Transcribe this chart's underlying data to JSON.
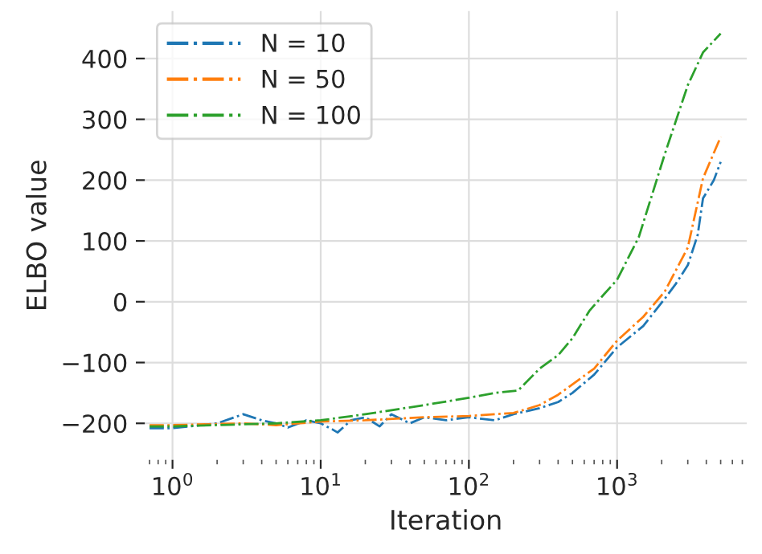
{
  "chart_data": {
    "type": "line",
    "xlabel": "Iteration",
    "ylabel": "ELBO value",
    "log": "x",
    "xlim": [
      0.65,
      7500
    ],
    "ylim": [
      -260,
      478
    ],
    "xticks": [
      {
        "value": 1,
        "label": "10$^{0}$"
      },
      {
        "value": 10,
        "label": "10$^{1}$"
      },
      {
        "value": 100,
        "label": "10$^{2}$"
      },
      {
        "value": 1000,
        "label": "10$^{3}$"
      }
    ],
    "yticks": [
      -200,
      -100,
      0,
      100,
      200,
      300,
      400
    ],
    "grid": true,
    "legend": "top left",
    "marker": "none",
    "line_style": "dashed",
    "series": [
      {
        "name": "N = 10",
        "color": "#1f77b4",
        "x": [
          0.7,
          1,
          2,
          3,
          4,
          5,
          6,
          8,
          10,
          12,
          13,
          16,
          20,
          25,
          30,
          40,
          50,
          70,
          100,
          150,
          200,
          300,
          400,
          500,
          700,
          1000,
          1500,
          2100,
          2500,
          3000,
          3500,
          3800,
          4500,
          5000
        ],
        "values": [
          -208,
          -208,
          -200,
          -185,
          -195,
          -200,
          -207,
          -195,
          -200,
          -210,
          -215,
          -195,
          -190,
          -205,
          -185,
          -200,
          -190,
          -195,
          -190,
          -195,
          -185,
          -175,
          -165,
          -150,
          -120,
          -75,
          -40,
          5,
          30,
          60,
          110,
          170,
          200,
          230
        ]
      },
      {
        "name": "N = 50",
        "color": "#ff7f0e",
        "x": [
          0.7,
          1,
          3,
          5,
          10,
          20,
          50,
          100,
          200,
          300,
          400,
          700,
          1000,
          1500,
          2100,
          3000,
          3800,
          5000
        ],
        "values": [
          -203,
          -203,
          -200,
          -203,
          -197,
          -195,
          -190,
          -188,
          -183,
          -170,
          -153,
          -110,
          -64,
          -25,
          17,
          89,
          203,
          271
        ]
      },
      {
        "name": "N = 100",
        "color": "#2ca02c",
        "x": [
          0.7,
          1,
          5,
          10,
          20,
          50,
          100,
          150,
          215,
          300,
          400,
          500,
          650,
          800,
          1000,
          1400,
          2100,
          3000,
          3800,
          5000
        ],
        "values": [
          -205,
          -205,
          -200,
          -195,
          -185,
          -170,
          -158,
          -150,
          -146,
          -110,
          -88,
          -60,
          -15,
          10,
          36,
          106,
          243,
          356,
          410,
          441
        ]
      }
    ]
  }
}
